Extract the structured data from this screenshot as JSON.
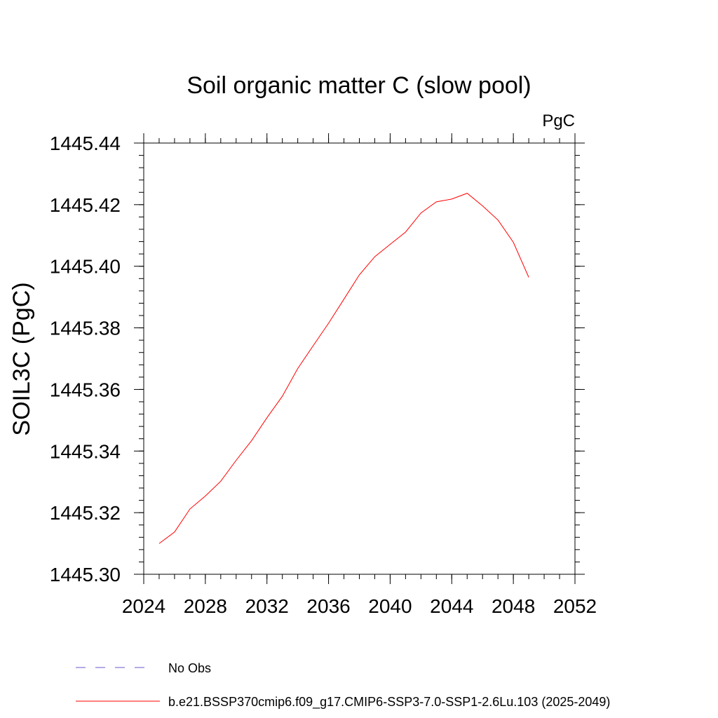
{
  "chart_data": {
    "type": "line",
    "title": "Soil organic matter C (slow pool)",
    "units": "PgC",
    "ylabel": "SOIL3C  (PgC)",
    "xlabel": "",
    "xlim": [
      2024,
      2052
    ],
    "ylim": [
      1445.3,
      1445.44
    ],
    "x_ticks": [
      2024,
      2028,
      2032,
      2036,
      2040,
      2044,
      2048,
      2052
    ],
    "x_tick_labels": [
      "2024",
      "2028",
      "2032",
      "2036",
      "2040",
      "2044",
      "2048",
      "2052"
    ],
    "y_ticks": [
      1445.3,
      1445.32,
      1445.34,
      1445.36,
      1445.38,
      1445.4,
      1445.42,
      1445.44
    ],
    "y_tick_labels": [
      "1445.30",
      "1445.32",
      "1445.34",
      "1445.36",
      "1445.38",
      "1445.40",
      "1445.42",
      "1445.44"
    ],
    "x_minor_step": 1,
    "y_minor_step": 0.004,
    "grid": false,
    "legend_position": "bottom",
    "series": [
      {
        "name": "b.e21.BSSP370cmip6.f09_g17.CMIP6-SSP3-7.0-SSP1-2.6Lu.103 (2025-2049)",
        "color": "#ff0000",
        "style": "solid",
        "x": [
          2025,
          2026,
          2027,
          2028,
          2029,
          2030,
          2031,
          2032,
          2033,
          2034,
          2035,
          2036,
          2037,
          2038,
          2039,
          2040,
          2041,
          2042,
          2043,
          2044,
          2045,
          2046,
          2047,
          2048,
          2049
        ],
        "values": [
          1445.31,
          1445.3137,
          1445.3212,
          1445.3254,
          1445.3302,
          1445.337,
          1445.3434,
          1445.3508,
          1445.3578,
          1445.3668,
          1445.3742,
          1445.3815,
          1445.3893,
          1445.3972,
          1445.4031,
          1445.4071,
          1445.4111,
          1445.4173,
          1445.4209,
          1445.4218,
          1445.4237,
          1445.4196,
          1445.415,
          1445.4078,
          1445.3964
        ]
      }
    ],
    "legend": [
      {
        "label": "No Obs",
        "color": "#6a5acd",
        "style": "dashed"
      },
      {
        "label": "b.e21.BSSP370cmip6.f09_g17.CMIP6-SSP3-7.0-SSP1-2.6Lu.103 (2025-2049)",
        "color": "#ff0000",
        "style": "solid"
      }
    ]
  }
}
